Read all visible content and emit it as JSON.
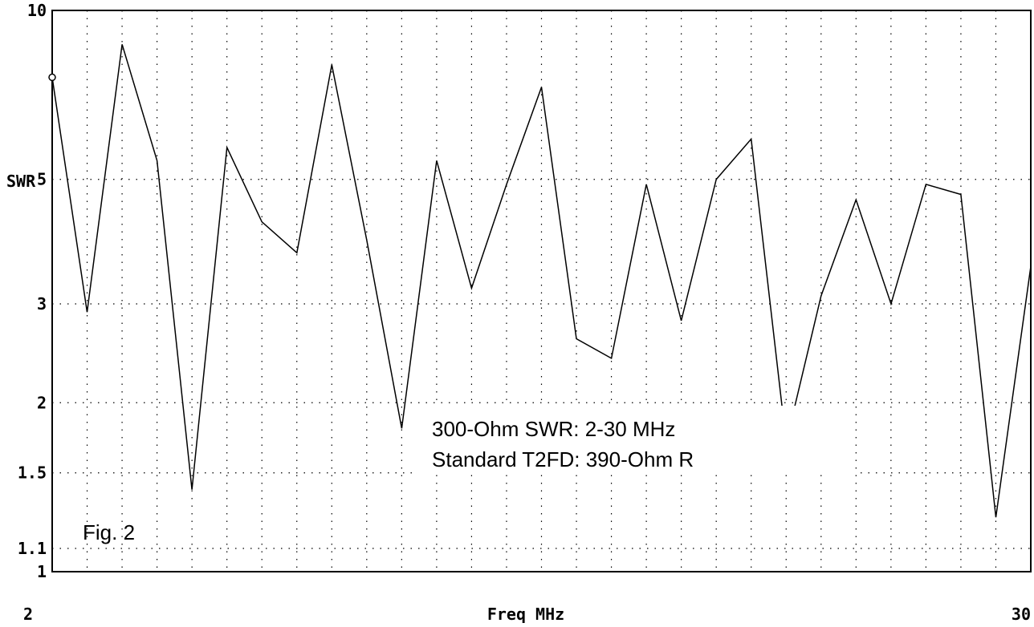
{
  "chart_data": {
    "type": "line",
    "xlabel": "Freq MHz",
    "ylabel": "SWR",
    "xlim": [
      2,
      30
    ],
    "ylim": [
      1,
      10
    ],
    "y_scale": "log",
    "grid": true,
    "x_tick_labels": [
      "2",
      "30"
    ],
    "y_ticks": [
      {
        "value": 10,
        "label": "10"
      },
      {
        "value": 5,
        "label": "5"
      },
      {
        "value": 3,
        "label": "3"
      },
      {
        "value": 2,
        "label": "2"
      },
      {
        "value": 1.5,
        "label": "1.5"
      },
      {
        "value": 1.1,
        "label": "1.1"
      },
      {
        "value": 1,
        "label": "1"
      }
    ],
    "annotations": [
      "300-Ohm SWR:  2-30 MHz",
      "Standard T2FD:  390-Ohm R",
      "Fig. 2"
    ],
    "series": [
      {
        "x": [
          2,
          3,
          4,
          5,
          6,
          7,
          8,
          9,
          10,
          11,
          12,
          13,
          14,
          15,
          16,
          17,
          18,
          19,
          20,
          21,
          22,
          23,
          24,
          25,
          26,
          27,
          28,
          29,
          30
        ],
        "values": [
          7.6,
          2.9,
          8.7,
          5.4,
          1.4,
          5.7,
          4.2,
          3.7,
          8.0,
          3.9,
          1.8,
          5.4,
          3.2,
          4.9,
          7.3,
          2.6,
          2.4,
          4.9,
          2.8,
          5.0,
          5.9,
          1.7,
          3.1,
          4.6,
          3.0,
          4.9,
          4.7,
          1.25,
          3.5
        ]
      }
    ],
    "colors": {
      "line": "#000000",
      "grid": "#000000",
      "background": "#ffffff"
    }
  }
}
